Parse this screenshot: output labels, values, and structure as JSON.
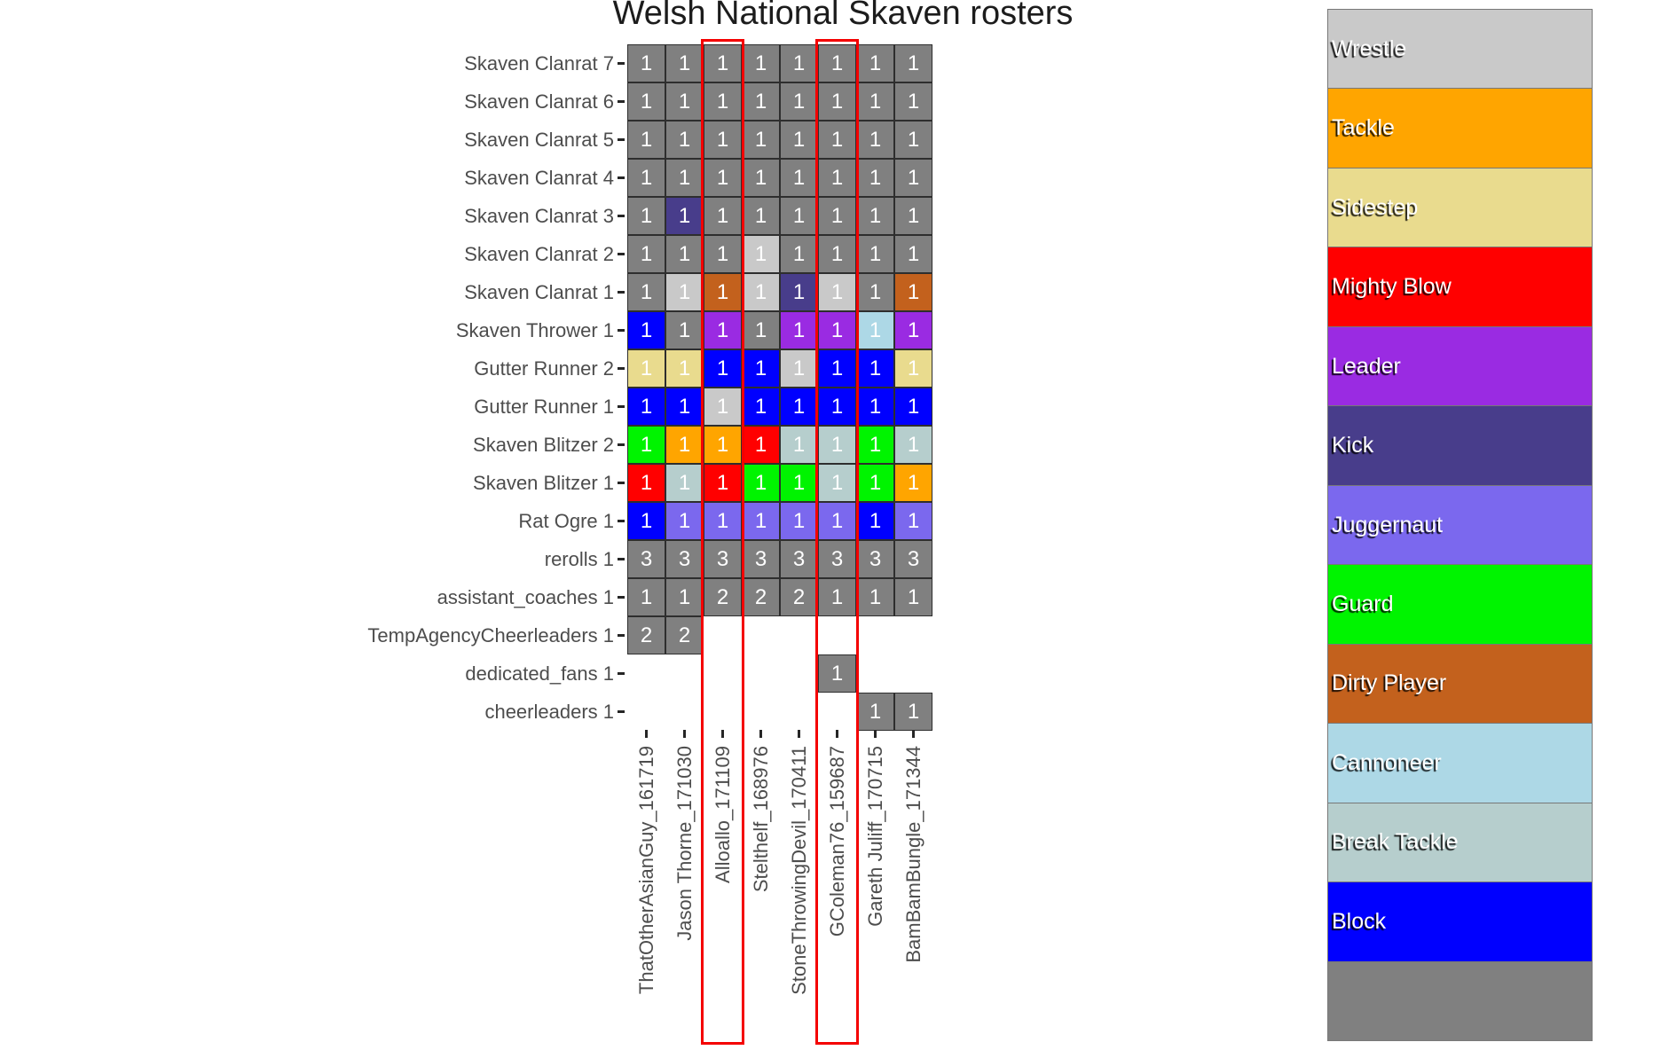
{
  "chart_data": {
    "type": "heatmap",
    "title": "Welsh National Skaven rosters",
    "columns": [
      "ThatOtherAsianGuy_161719",
      "Jason Thorne_171030",
      "Alloallo_171109",
      "Stelthelf_168976",
      "StoneThrowingDevil_170411",
      "GColeman76_159687",
      "Gareth Juliff_170715",
      "BamBamBungle_171344"
    ],
    "rows": [
      "Skaven Clanrat 7",
      "Skaven Clanrat 6",
      "Skaven Clanrat 5",
      "Skaven Clanrat 4",
      "Skaven Clanrat 3",
      "Skaven Clanrat 2",
      "Skaven Clanrat 1",
      "Skaven Thrower 1",
      "Gutter Runner 2",
      "Gutter Runner 1",
      "Skaven Blitzer 2",
      "Skaven Blitzer 1",
      "Rat Ogre 1",
      "rerolls 1",
      "assistant_coaches 1",
      "TempAgencyCheerleaders 1",
      "dedicated_fans 1",
      "cheerleaders 1"
    ],
    "highlighted_columns": [
      "Alloallo_171109",
      "GColeman76_159687"
    ],
    "highlight_color": "#f40000",
    "palette": {
      "base": "#808080",
      "Wrestle": "#c9c9c9",
      "Tackle": "#ffa500",
      "Sidestep": "#e9db8e",
      "Mighty Blow": "#ff0000",
      "Leader": "#9a2be2",
      "Kick": "#483d8b",
      "Juggernaut": "#7b68ee",
      "Guard": "#00f400",
      "Dirty Player": "#c3611d",
      "Cannoneer": "#add8e6",
      "Break Tackle": "#b6cecd",
      "Block": "#0000ff"
    },
    "cells": [
      [
        [
          "1",
          "base"
        ],
        [
          "1",
          "base"
        ],
        [
          "1",
          "base"
        ],
        [
          "1",
          "base"
        ],
        [
          "1",
          "base"
        ],
        [
          "1",
          "base"
        ],
        [
          "1",
          "base"
        ],
        [
          "1",
          "base"
        ]
      ],
      [
        [
          "1",
          "base"
        ],
        [
          "1",
          "base"
        ],
        [
          "1",
          "base"
        ],
        [
          "1",
          "base"
        ],
        [
          "1",
          "base"
        ],
        [
          "1",
          "base"
        ],
        [
          "1",
          "base"
        ],
        [
          "1",
          "base"
        ]
      ],
      [
        [
          "1",
          "base"
        ],
        [
          "1",
          "base"
        ],
        [
          "1",
          "base"
        ],
        [
          "1",
          "base"
        ],
        [
          "1",
          "base"
        ],
        [
          "1",
          "base"
        ],
        [
          "1",
          "base"
        ],
        [
          "1",
          "base"
        ]
      ],
      [
        [
          "1",
          "base"
        ],
        [
          "1",
          "base"
        ],
        [
          "1",
          "base"
        ],
        [
          "1",
          "base"
        ],
        [
          "1",
          "base"
        ],
        [
          "1",
          "base"
        ],
        [
          "1",
          "base"
        ],
        [
          "1",
          "base"
        ]
      ],
      [
        [
          "1",
          "base"
        ],
        [
          "1",
          "Kick"
        ],
        [
          "1",
          "base"
        ],
        [
          "1",
          "base"
        ],
        [
          "1",
          "base"
        ],
        [
          "1",
          "base"
        ],
        [
          "1",
          "base"
        ],
        [
          "1",
          "base"
        ]
      ],
      [
        [
          "1",
          "base"
        ],
        [
          "1",
          "base"
        ],
        [
          "1",
          "base"
        ],
        [
          "1",
          "Wrestle"
        ],
        [
          "1",
          "base"
        ],
        [
          "1",
          "base"
        ],
        [
          "1",
          "base"
        ],
        [
          "1",
          "base"
        ]
      ],
      [
        [
          "1",
          "base"
        ],
        [
          "1",
          "Wrestle"
        ],
        [
          "1",
          "Dirty Player"
        ],
        [
          "1",
          "Wrestle"
        ],
        [
          "1",
          "Kick"
        ],
        [
          "1",
          "Wrestle"
        ],
        [
          "1",
          "base"
        ],
        [
          "1",
          "Dirty Player"
        ]
      ],
      [
        [
          "1",
          "Block"
        ],
        [
          "1",
          "base"
        ],
        [
          "1",
          "Leader"
        ],
        [
          "1",
          "base"
        ],
        [
          "1",
          "Leader"
        ],
        [
          "1",
          "Leader"
        ],
        [
          "1",
          "Cannoneer"
        ],
        [
          "1",
          "Leader"
        ]
      ],
      [
        [
          "1",
          "Sidestep"
        ],
        [
          "1",
          "Sidestep"
        ],
        [
          "1",
          "Block"
        ],
        [
          "1",
          "Block"
        ],
        [
          "1",
          "Wrestle"
        ],
        [
          "1",
          "Block"
        ],
        [
          "1",
          "Block"
        ],
        [
          "1",
          "Sidestep"
        ]
      ],
      [
        [
          "1",
          "Block"
        ],
        [
          "1",
          "Block"
        ],
        [
          "1",
          "Wrestle"
        ],
        [
          "1",
          "Block"
        ],
        [
          "1",
          "Block"
        ],
        [
          "1",
          "Block"
        ],
        [
          "1",
          "Block"
        ],
        [
          "1",
          "Block"
        ]
      ],
      [
        [
          "1",
          "Guard"
        ],
        [
          "1",
          "Tackle"
        ],
        [
          "1",
          "Tackle"
        ],
        [
          "1",
          "Mighty Blow"
        ],
        [
          "1",
          "Break Tackle"
        ],
        [
          "1",
          "Break Tackle"
        ],
        [
          "1",
          "Guard"
        ],
        [
          "1",
          "Break Tackle"
        ]
      ],
      [
        [
          "1",
          "Mighty Blow"
        ],
        [
          "1",
          "Break Tackle"
        ],
        [
          "1",
          "Mighty Blow"
        ],
        [
          "1",
          "Guard"
        ],
        [
          "1",
          "Guard"
        ],
        [
          "1",
          "Break Tackle"
        ],
        [
          "1",
          "Guard"
        ],
        [
          "1",
          "Tackle"
        ]
      ],
      [
        [
          "1",
          "Block"
        ],
        [
          "1",
          "Juggernaut"
        ],
        [
          "1",
          "Juggernaut"
        ],
        [
          "1",
          "Juggernaut"
        ],
        [
          "1",
          "Juggernaut"
        ],
        [
          "1",
          "Juggernaut"
        ],
        [
          "1",
          "Block"
        ],
        [
          "1",
          "Juggernaut"
        ]
      ],
      [
        [
          "3",
          "base"
        ],
        [
          "3",
          "base"
        ],
        [
          "3",
          "base"
        ],
        [
          "3",
          "base"
        ],
        [
          "3",
          "base"
        ],
        [
          "3",
          "base"
        ],
        [
          "3",
          "base"
        ],
        [
          "3",
          "base"
        ]
      ],
      [
        [
          "1",
          "base"
        ],
        [
          "1",
          "base"
        ],
        [
          "2",
          "base"
        ],
        [
          "2",
          "base"
        ],
        [
          "2",
          "base"
        ],
        [
          "1",
          "base"
        ],
        [
          "1",
          "base"
        ],
        [
          "1",
          "base"
        ]
      ],
      [
        [
          "2",
          "base"
        ],
        [
          "2",
          "base"
        ],
        null,
        null,
        null,
        null,
        null,
        null
      ],
      [
        null,
        null,
        null,
        null,
        null,
        [
          "1",
          "base"
        ],
        null,
        null
      ],
      [
        null,
        null,
        null,
        null,
        null,
        null,
        [
          "1",
          "base"
        ],
        [
          "1",
          "base"
        ]
      ]
    ],
    "legend": [
      {
        "label": "Wrestle",
        "color": "#c9c9c9"
      },
      {
        "label": "Tackle",
        "color": "#ffa500"
      },
      {
        "label": "Sidestep",
        "color": "#e9db8e"
      },
      {
        "label": "Mighty Blow",
        "color": "#ff0000"
      },
      {
        "label": "Leader",
        "color": "#9a2be2"
      },
      {
        "label": "Kick",
        "color": "#483d8b"
      },
      {
        "label": "Juggernaut",
        "color": "#7b68ee"
      },
      {
        "label": "Guard",
        "color": "#00f400"
      },
      {
        "label": "Dirty Player",
        "color": "#c3611d"
      },
      {
        "label": "Cannoneer",
        "color": "#add8e6"
      },
      {
        "label": "Break Tackle",
        "color": "#b6cecd"
      },
      {
        "label": "Block",
        "color": "#0000ff"
      },
      {
        "label": "",
        "color": "#808080"
      }
    ]
  }
}
